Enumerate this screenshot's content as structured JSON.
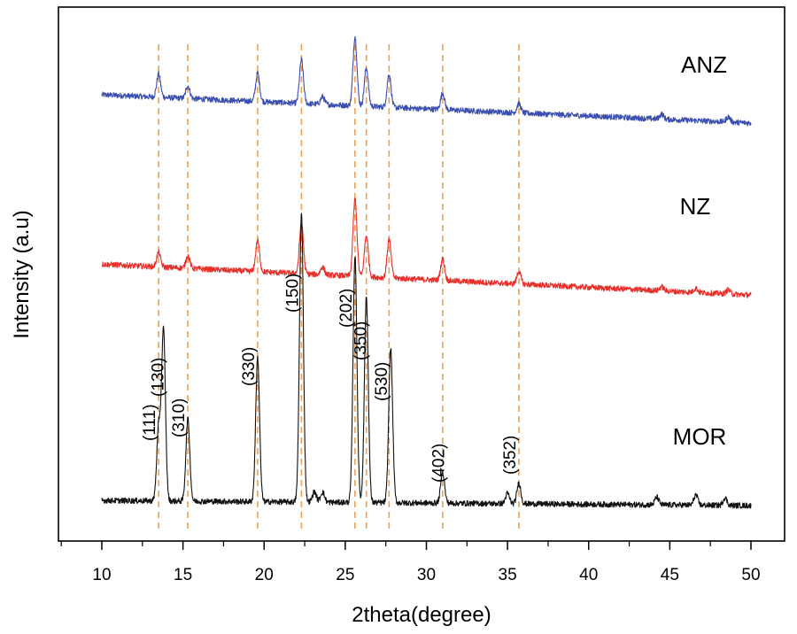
{
  "chart_data": {
    "type": "line",
    "title": "",
    "xlabel": "2theta(degree)",
    "ylabel": "Intensity (a.u)",
    "xlim": [
      7,
      52
    ],
    "ylim": [
      0,
      100
    ],
    "xticks": [
      10,
      15,
      20,
      25,
      30,
      35,
      40,
      45,
      50
    ],
    "grid": false,
    "legend": "none",
    "reference_lines_2theta": [
      13.5,
      15.3,
      19.6,
      22.3,
      25.6,
      26.3,
      27.7,
      31.0,
      35.7
    ],
    "series": [
      {
        "name": "ANZ",
        "color": "#3b4fb0",
        "baseline": 85,
        "baseline_end": 79.5,
        "noise": 0.55,
        "peaks": [
          [
            13.5,
            4.5
          ],
          [
            15.3,
            2.5
          ],
          [
            19.6,
            5.5
          ],
          [
            22.3,
            8.5
          ],
          [
            23.6,
            1.5
          ],
          [
            25.6,
            13.5
          ],
          [
            26.3,
            7.5
          ],
          [
            27.7,
            6.5
          ],
          [
            31.0,
            3.2
          ],
          [
            35.7,
            1.8
          ],
          [
            44.5,
            1.0
          ],
          [
            48.6,
            1.0
          ]
        ]
      },
      {
        "name": "NZ",
        "color": "#e8302a",
        "baseline": 52,
        "baseline_end": 46,
        "noise": 0.55,
        "peaks": [
          [
            13.5,
            2.8
          ],
          [
            15.3,
            2.5
          ],
          [
            19.6,
            6
          ],
          [
            22.3,
            10
          ],
          [
            23.6,
            1.5
          ],
          [
            25.6,
            15
          ],
          [
            26.3,
            8
          ],
          [
            27.7,
            7.5
          ],
          [
            31.0,
            4.2
          ],
          [
            35.7,
            2.5
          ],
          [
            44.5,
            0.8
          ],
          [
            46.6,
            0.8
          ],
          [
            48.6,
            0.8
          ]
        ]
      },
      {
        "name": "MOR",
        "color": "#111111",
        "baseline": 6,
        "baseline_end": 5,
        "noise": 0.55,
        "peaks": [
          [
            13.5,
            14
          ],
          [
            13.8,
            33
          ],
          [
            15.3,
            16
          ],
          [
            19.6,
            28
          ],
          [
            22.3,
            56
          ],
          [
            23.1,
            2
          ],
          [
            23.6,
            2
          ],
          [
            25.6,
            48
          ],
          [
            26.3,
            40
          ],
          [
            27.8,
            30
          ],
          [
            31.0,
            6
          ],
          [
            35.0,
            2
          ],
          [
            35.7,
            4
          ],
          [
            44.2,
            1.5
          ],
          [
            46.6,
            2
          ],
          [
            48.4,
            1.5
          ]
        ]
      }
    ],
    "series_labels": [
      {
        "name": "ANZ",
        "text": "ANZ"
      },
      {
        "name": "NZ",
        "text": "NZ"
      },
      {
        "name": "MOR",
        "text": "MOR"
      }
    ],
    "peak_labels": [
      {
        "text": "(111)",
        "x": 13.5
      },
      {
        "text": "(130)",
        "x": 14.0
      },
      {
        "text": "(310)",
        "x": 15.3
      },
      {
        "text": "(330)",
        "x": 19.6
      },
      {
        "text": "(150)",
        "x": 22.3
      },
      {
        "text": "(202)",
        "x": 25.6
      },
      {
        "text": "(350)",
        "x": 26.5
      },
      {
        "text": "(530)",
        "x": 27.8
      },
      {
        "text": "(402)",
        "x": 31.3
      },
      {
        "text": "(352)",
        "x": 35.7
      }
    ]
  }
}
